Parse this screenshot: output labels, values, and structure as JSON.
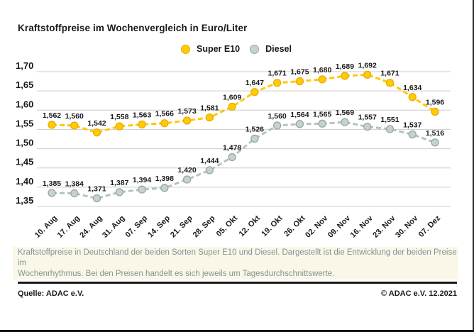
{
  "title": "Kraftstoffpreise im Wochenvergleich in Euro/Liter",
  "legend": {
    "super_e10": "Super E10",
    "diesel": "Diesel"
  },
  "chart_data": {
    "type": "line",
    "title": "Kraftstoffpreise im Wochenvergleich in Euro/Liter",
    "unit": "Euro/Liter",
    "categories": [
      "10. Aug",
      "17. Aug",
      "24. Aug",
      "31. Aug",
      "07. Sep",
      "14. Sep",
      "21. Sep",
      "28. Sep",
      "05. Okt",
      "12. Okt",
      "19. Okt",
      "26. Okt",
      "02. Nov",
      "09. Nov",
      "16. Nov",
      "23. Nov",
      "30. Nov",
      "07. Dez"
    ],
    "series": [
      {
        "name": "Super E10",
        "color": "#ffc806",
        "dot_fill": "#ffcc00",
        "dot_stroke": "#e8a90b",
        "values": [
          1.562,
          1.56,
          1.542,
          1.558,
          1.563,
          1.566,
          1.573,
          1.581,
          1.609,
          1.647,
          1.671,
          1.675,
          1.68,
          1.689,
          1.692,
          1.671,
          1.634,
          1.596
        ]
      },
      {
        "name": "Diesel",
        "color": "#b4c3bc",
        "dot_fill": "#c6d2cb",
        "dot_stroke": "#95a8a0",
        "values": [
          1.385,
          1.384,
          1.371,
          1.387,
          1.394,
          1.398,
          1.42,
          1.444,
          1.478,
          1.526,
          1.56,
          1.564,
          1.565,
          1.569,
          1.557,
          1.551,
          1.537,
          1.516
        ]
      }
    ],
    "ylim": [
      1.35,
      1.7
    ],
    "ytick_step": 0.05,
    "grid": true,
    "legend_position": "top-center",
    "value_labels": true,
    "decimal_separator": ","
  },
  "caption": {
    "line1": "Kraftstoffpreise in Deutschland der beiden Sorten Super E10 und Diesel. Dargestellt ist die Entwicklung der beiden Preise im",
    "line2": "Wochenrhythmus. Bei den Preisen handelt es sich jeweils um Tagesdurchschnittswerte."
  },
  "footer": {
    "source": "Quelle: ADAC e.V.",
    "copyright": "© ADAC e.V. 12.2021"
  },
  "colors": {
    "accent_yellow": "#ffcc00",
    "diesel_gray": "#b4c3bc",
    "caption_bg": "#fbf7e8",
    "caption_text": "#7f9594",
    "text": "#1a1a1a",
    "gridline": "#cccccc"
  }
}
